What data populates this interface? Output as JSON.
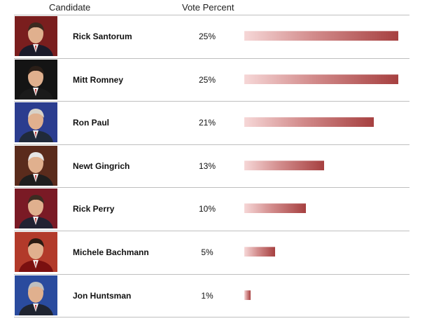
{
  "header": {
    "candidate": "Candidate",
    "vote_percent": "Vote Percent"
  },
  "colors": {
    "bar_light": "#f6d7d7",
    "bar_dark": "#a64040",
    "rule": "#bfbfbf"
  },
  "chart_data": {
    "type": "bar",
    "categories": [
      "Rick Santorum",
      "Mitt Romney",
      "Ron Paul",
      "Newt Gingrich",
      "Rick Perry",
      "Michele Bachmann",
      "Jon Huntsman"
    ],
    "values": [
      25,
      25,
      21,
      13,
      10,
      5,
      1
    ],
    "value_labels": [
      "25%",
      "25%",
      "21%",
      "13%",
      "10%",
      "5%",
      "1%"
    ],
    "xlim": [
      0,
      25
    ],
    "title": "",
    "xlabel": "Vote Percent",
    "ylabel": "Candidate"
  },
  "rows": [
    {
      "name": "Rick Santorum",
      "pct": "25%",
      "photo_icon": "candidate-photo"
    },
    {
      "name": "Mitt Romney",
      "pct": "25%",
      "photo_icon": "candidate-photo"
    },
    {
      "name": "Ron Paul",
      "pct": "21%",
      "photo_icon": "candidate-photo"
    },
    {
      "name": "Newt Gingrich",
      "pct": "13%",
      "photo_icon": "candidate-photo"
    },
    {
      "name": "Rick Perry",
      "pct": "10%",
      "photo_icon": "candidate-photo"
    },
    {
      "name": "Michele Bachmann",
      "pct": "5%",
      "photo_icon": "candidate-photo"
    },
    {
      "name": "Jon Huntsman",
      "pct": "1%",
      "photo_icon": "candidate-photo"
    }
  ]
}
